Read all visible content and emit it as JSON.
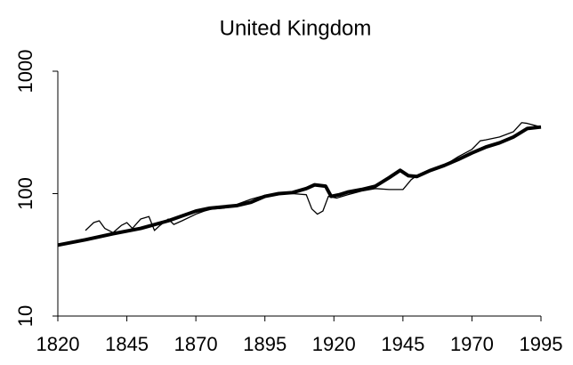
{
  "chart_data": {
    "type": "line",
    "title": "United Kingdom",
    "xlim": [
      1820,
      1995
    ],
    "xticks": [
      1820,
      1845,
      1870,
      1895,
      1920,
      1945,
      1970,
      1995
    ],
    "ylim": [
      10,
      1000
    ],
    "yticks": [
      10,
      100,
      1000
    ],
    "log_y": true,
    "grid": false,
    "series": [
      {
        "color": "#000000",
        "width": 1.3,
        "x": [
          1830,
          1833,
          1835,
          1837,
          1840,
          1843,
          1845,
          1847,
          1850,
          1853,
          1855,
          1857,
          1860,
          1862,
          1865,
          1870,
          1873,
          1876,
          1880,
          1885,
          1890,
          1895,
          1900,
          1905,
          1910,
          1912,
          1914,
          1916,
          1918,
          1921,
          1925,
          1930,
          1935,
          1940,
          1945,
          1948,
          1950,
          1955,
          1960,
          1965,
          1970,
          1973,
          1975,
          1980,
          1985,
          1988,
          1990,
          1995
        ],
        "values": [
          50,
          58,
          60,
          52,
          48,
          55,
          58,
          52,
          62,
          65,
          50,
          55,
          62,
          56,
          60,
          68,
          72,
          75,
          76,
          82,
          90,
          97,
          100,
          100,
          98,
          75,
          68,
          72,
          95,
          92,
          98,
          105,
          110,
          108,
          108,
          130,
          140,
          155,
          170,
          200,
          230,
          270,
          275,
          290,
          320,
          380,
          375,
          350
        ]
      },
      {
        "color": "#000000",
        "width": 4,
        "x": [
          1820,
          1830,
          1840,
          1850,
          1860,
          1870,
          1875,
          1880,
          1885,
          1890,
          1895,
          1900,
          1905,
          1910,
          1913,
          1917,
          1919,
          1922,
          1925,
          1930,
          1935,
          1940,
          1944,
          1947,
          1950,
          1955,
          1960,
          1965,
          1970,
          1975,
          1980,
          1985,
          1990,
          1995
        ],
        "values": [
          38,
          42,
          47,
          52,
          60,
          72,
          76,
          78,
          80,
          85,
          95,
          100,
          102,
          110,
          118,
          115,
          95,
          98,
          103,
          108,
          115,
          135,
          155,
          140,
          138,
          155,
          170,
          190,
          215,
          240,
          260,
          290,
          340,
          350
        ]
      }
    ]
  }
}
